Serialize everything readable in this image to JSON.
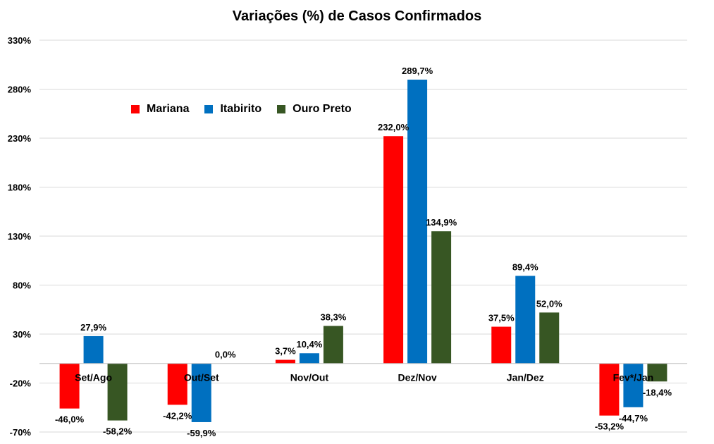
{
  "chart_data": {
    "type": "bar",
    "title": "Variações (%) de Casos Confirmados",
    "xlabel": "",
    "ylabel": "",
    "categories": [
      "Set/Ago",
      "Out/Set",
      "Nov/Out",
      "Dez/Nov",
      "Jan/Dez",
      "Fev*/Jan"
    ],
    "ylim": [
      -70,
      330
    ],
    "yticks": [
      -70,
      -20,
      30,
      80,
      130,
      180,
      230,
      280,
      330
    ],
    "ytick_labels": [
      "-70%",
      "-20%",
      "30%",
      "80%",
      "130%",
      "180%",
      "230%",
      "280%",
      "330%"
    ],
    "grid": true,
    "legend_position": "top-left",
    "series": [
      {
        "name": "Mariana",
        "color": "#ff0000",
        "values": [
          -46.0,
          -42.2,
          3.7,
          232.0,
          37.5,
          -53.2
        ],
        "labels": [
          "-46,0%",
          "-42,2%",
          "3,7%",
          "232,0%",
          "37,5%",
          "-53,2%"
        ]
      },
      {
        "name": "Itabirito",
        "color": "#0070c0",
        "values": [
          27.9,
          -59.9,
          10.4,
          289.7,
          89.4,
          -44.7
        ],
        "labels": [
          "27,9%",
          "-59,9%",
          "10,4%",
          "289,7%",
          "89,4%",
          "-44,7%"
        ]
      },
      {
        "name": "Ouro Preto",
        "color": "#375623",
        "values": [
          -58.2,
          0.0,
          38.3,
          134.9,
          52.0,
          -18.4
        ],
        "labels": [
          "-58,2%",
          "0,0%",
          "38,3%",
          "134,9%",
          "52,0%",
          "-18,4%"
        ]
      }
    ]
  }
}
